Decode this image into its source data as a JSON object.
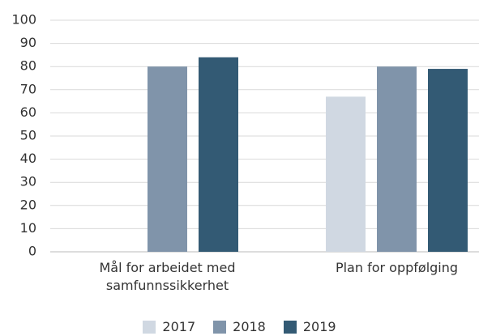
{
  "chart_data": {
    "type": "bar",
    "categories": [
      "Mål for arbeidet med samfunnssikkerhet",
      "Plan for oppfølging"
    ],
    "series": [
      {
        "name": "2017",
        "color": "#d0d8e2",
        "values": [
          null,
          67
        ]
      },
      {
        "name": "2018",
        "color": "#8094aa",
        "values": [
          80,
          80
        ]
      },
      {
        "name": "2019",
        "color": "#335a74",
        "values": [
          84,
          79
        ]
      }
    ],
    "ylim": [
      0,
      100
    ],
    "yticks": [
      0,
      10,
      20,
      30,
      40,
      50,
      60,
      70,
      80,
      90,
      100
    ],
    "grid": true,
    "legend": "bottom"
  }
}
